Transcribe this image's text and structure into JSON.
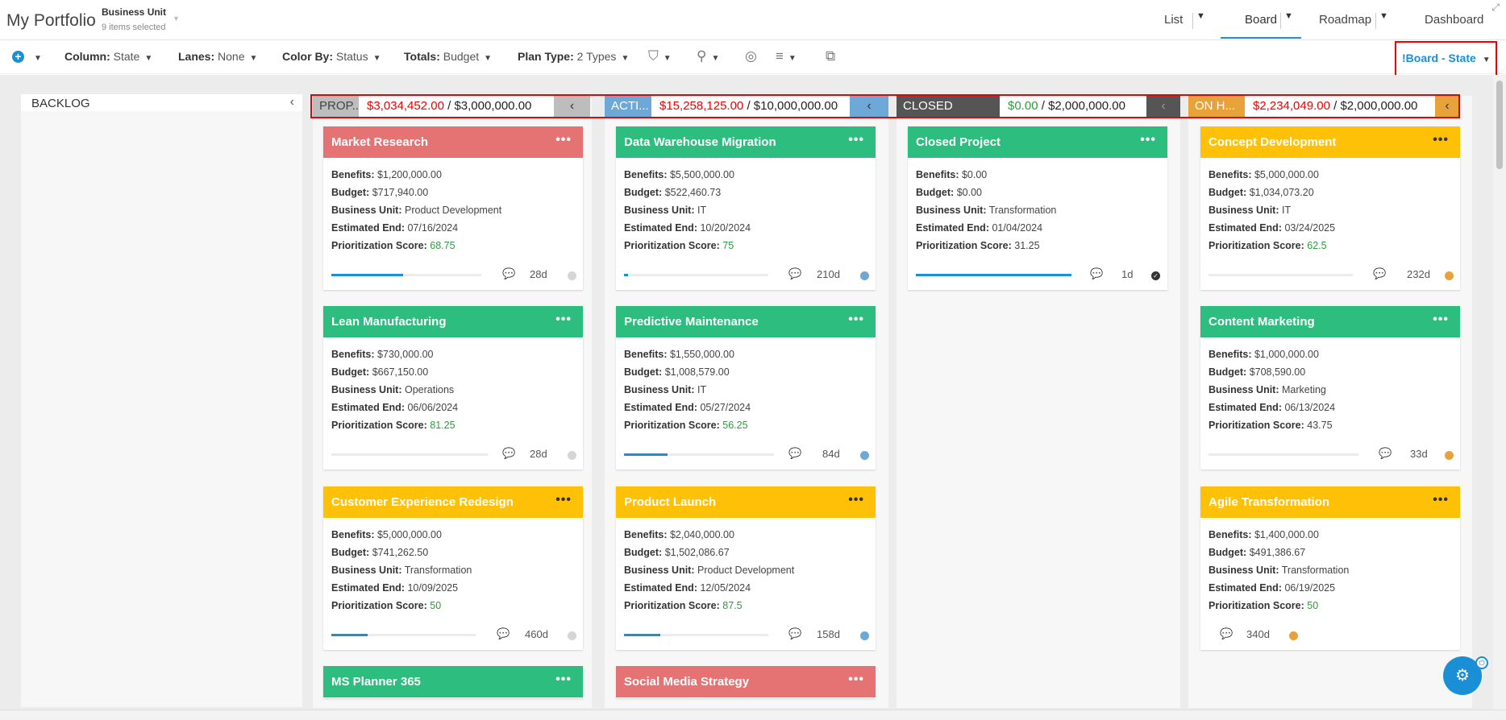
{
  "app": {
    "title": "My Portfolio",
    "filter_label": "Business Unit",
    "filter_sub": "9 items selected"
  },
  "views": {
    "list": "List",
    "board": "Board",
    "roadmap": "Roadmap",
    "dashboard": "Dashboard"
  },
  "toolbar": {
    "column_label": "Column:",
    "column_value": "State",
    "lanes_label": "Lanes:",
    "lanes_value": "None",
    "color_label": "Color By:",
    "color_value": "Status",
    "totals_label": "Totals:",
    "totals_value": "Budget",
    "plantype_label": "Plan Type:",
    "plantype_value": "2 Types",
    "view_select": "!Board - State"
  },
  "columns": {
    "backlog": {
      "name": "BACKLOG"
    },
    "proposed": {
      "name": "PROP...",
      "actual": "$3,034,452.00",
      "target": "$3,000,000.00",
      "color": "#bdbdbd"
    },
    "active": {
      "name": "ACTI...",
      "actual": "$15,258,125.00",
      "target": "$10,000,000.00",
      "color": "#6ea8d6"
    },
    "closed": {
      "name": "CLOSED",
      "actual": "$0.00",
      "target": "$2,000,000.00",
      "color": "#555555"
    },
    "onhold": {
      "name": "ON H...",
      "actual": "$2,234,049.00",
      "target": "$2,000,000.00",
      "color": "#e8a23a"
    }
  },
  "labels": {
    "benefits": "Benefits:",
    "budget": "Budget:",
    "bu": "Business Unit:",
    "end": "Estimated End:",
    "score": "Prioritization Score:",
    "sep": "/"
  },
  "cards": [
    {
      "title": "Market Research",
      "benefits": "$1,200,000.00",
      "budget": "$717,940.00",
      "bu": "Product Development",
      "end": "07/16/2024",
      "score": "68.75",
      "days": "28d",
      "progress": 0.48
    },
    {
      "title": "Lean Manufacturing",
      "benefits": "$730,000.00",
      "budget": "$667,150.00",
      "bu": "Operations",
      "end": "06/06/2024",
      "score": "81.25",
      "days": "28d",
      "progress": 0
    },
    {
      "title": "Customer Experience Redesign",
      "benefits": "$5,000,000.00",
      "budget": "$741,262.50",
      "bu": "Transformation",
      "end": "10/09/2025",
      "score": "50",
      "days": "460d",
      "progress": 0.25
    },
    {
      "title": "MS Planner 365"
    },
    {
      "title": "Data Warehouse Migration",
      "benefits": "$5,500,000.00",
      "budget": "$522,460.73",
      "bu": "IT",
      "end": "10/20/2024",
      "score": "75",
      "days": "210d",
      "progress": 0.03
    },
    {
      "title": "Predictive Maintenance",
      "benefits": "$1,550,000.00",
      "budget": "$1,008,579.00",
      "bu": "IT",
      "end": "05/27/2024",
      "score": "56.25",
      "days": "84d",
      "progress": 0.29
    },
    {
      "title": "Product Launch",
      "benefits": "$2,040,000.00",
      "budget": "$1,502,086.67",
      "bu": "Product Development",
      "end": "12/05/2024",
      "score": "87.5",
      "days": "158d",
      "progress": 0.25
    },
    {
      "title": "Social Media Strategy"
    },
    {
      "title": "Closed Project",
      "benefits": "$0.00",
      "budget": "$0.00",
      "bu": "Transformation",
      "end": "01/04/2024",
      "score": "31.25",
      "days": "1d",
      "progress": 1.0
    },
    {
      "title": "Concept Development",
      "benefits": "$5,000,000.00",
      "budget": "$1,034,073.20",
      "bu": "IT",
      "end": "03/24/2025",
      "score": "62.5",
      "days": "232d",
      "progress": 0
    },
    {
      "title": "Content Marketing",
      "benefits": "$1,000,000.00",
      "budget": "$708,590.00",
      "bu": "Marketing",
      "end": "06/13/2024",
      "score": "43.75",
      "days": "33d",
      "progress": 0
    },
    {
      "title": "Agile Transformation",
      "benefits": "$1,400,000.00",
      "budget": "$491,386.67",
      "bu": "Transformation",
      "end": "06/19/2025",
      "score": "50",
      "days": "340d"
    }
  ]
}
